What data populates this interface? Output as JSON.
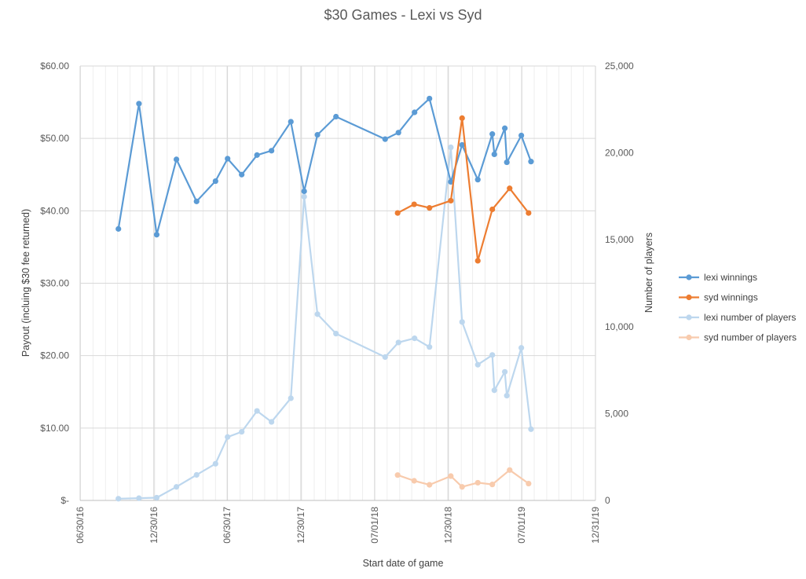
{
  "chart_data": {
    "type": "line",
    "title": "$30 Games - Lexi vs Syd",
    "xlabel": "Start date of game",
    "ylabel": "Payout (incluing $30 fee returned)",
    "y2label": "Number of players",
    "x_ticks": [
      "06/30/16",
      "12/30/16",
      "06/30/17",
      "12/30/17",
      "07/01/18",
      "12/30/18",
      "07/01/19",
      "12/31/19"
    ],
    "y_ticks": [
      "$-",
      "$10.00",
      "$20.00",
      "$30.00",
      "$40.00",
      "$50.00",
      "$60.00"
    ],
    "y2_ticks": [
      "0",
      "5,000",
      "10,000",
      "15,000",
      "20,000",
      "25,000"
    ],
    "xlim": [
      "2016-06-30",
      "2019-12-31"
    ],
    "ylim": [
      0,
      60
    ],
    "y2lim": [
      0,
      25000
    ],
    "grid": true,
    "legend_position": "right",
    "series": [
      {
        "name": "lexi winnings",
        "axis": "left",
        "color": "#5B9BD5",
        "points": [
          {
            "date": "2016-10-03",
            "value": 37.5
          },
          {
            "date": "2016-11-23",
            "value": 54.8
          },
          {
            "date": "2017-01-06",
            "value": 36.7
          },
          {
            "date": "2017-02-24",
            "value": 47.1
          },
          {
            "date": "2017-04-15",
            "value": 41.3
          },
          {
            "date": "2017-06-01",
            "value": 44.1
          },
          {
            "date": "2017-07-01",
            "value": 47.2
          },
          {
            "date": "2017-08-05",
            "value": 45.0
          },
          {
            "date": "2017-09-12",
            "value": 47.7
          },
          {
            "date": "2017-10-18",
            "value": 48.3
          },
          {
            "date": "2017-12-05",
            "value": 52.3
          },
          {
            "date": "2018-01-07",
            "value": 42.7
          },
          {
            "date": "2018-02-09",
            "value": 50.5
          },
          {
            "date": "2018-03-27",
            "value": 53.0
          },
          {
            "date": "2018-07-27",
            "value": 49.9
          },
          {
            "date": "2018-08-29",
            "value": 50.8
          },
          {
            "date": "2018-10-08",
            "value": 53.6
          },
          {
            "date": "2018-11-14",
            "value": 55.5
          },
          {
            "date": "2019-01-06",
            "value": 44.0
          },
          {
            "date": "2019-02-03",
            "value": 49.1
          },
          {
            "date": "2019-03-14",
            "value": 44.3
          },
          {
            "date": "2019-04-19",
            "value": 50.6
          },
          {
            "date": "2019-04-24",
            "value": 47.8
          },
          {
            "date": "2019-05-20",
            "value": 51.4
          },
          {
            "date": "2019-05-25",
            "value": 46.7
          },
          {
            "date": "2019-06-30",
            "value": 50.4
          },
          {
            "date": "2019-07-24",
            "value": 46.8
          }
        ]
      },
      {
        "name": "syd winnings",
        "axis": "left",
        "color": "#ED7D31",
        "points": [
          {
            "date": "2018-08-27",
            "value": 39.7
          },
          {
            "date": "2018-10-07",
            "value": 40.9
          },
          {
            "date": "2018-11-14",
            "value": 40.4
          },
          {
            "date": "2019-01-06",
            "value": 41.4
          },
          {
            "date": "2019-02-03",
            "value": 52.8
          },
          {
            "date": "2019-03-14",
            "value": 33.1
          },
          {
            "date": "2019-04-19",
            "value": 40.2
          },
          {
            "date": "2019-06-01",
            "value": 43.1
          },
          {
            "date": "2019-07-18",
            "value": 39.7
          }
        ]
      },
      {
        "name": "lexi number of players",
        "axis": "right",
        "color": "#BDD7EE",
        "points": [
          {
            "date": "2016-10-03",
            "value": 100
          },
          {
            "date": "2016-11-23",
            "value": 130
          },
          {
            "date": "2017-01-06",
            "value": 160
          },
          {
            "date": "2017-02-24",
            "value": 780
          },
          {
            "date": "2017-04-15",
            "value": 1470
          },
          {
            "date": "2017-06-01",
            "value": 2110
          },
          {
            "date": "2017-07-01",
            "value": 3650
          },
          {
            "date": "2017-08-05",
            "value": 3950
          },
          {
            "date": "2017-09-12",
            "value": 5150
          },
          {
            "date": "2017-10-18",
            "value": 4520
          },
          {
            "date": "2017-12-05",
            "value": 5880
          },
          {
            "date": "2018-01-07",
            "value": 17480
          },
          {
            "date": "2018-02-09",
            "value": 10720
          },
          {
            "date": "2018-03-27",
            "value": 9600
          },
          {
            "date": "2018-07-27",
            "value": 8250
          },
          {
            "date": "2018-08-29",
            "value": 9090
          },
          {
            "date": "2018-10-08",
            "value": 9330
          },
          {
            "date": "2018-11-14",
            "value": 8830
          },
          {
            "date": "2019-01-06",
            "value": 20320
          },
          {
            "date": "2019-02-03",
            "value": 10270
          },
          {
            "date": "2019-03-14",
            "value": 7810
          },
          {
            "date": "2019-04-19",
            "value": 8370
          },
          {
            "date": "2019-04-24",
            "value": 6340
          },
          {
            "date": "2019-05-20",
            "value": 7400
          },
          {
            "date": "2019-05-25",
            "value": 6030
          },
          {
            "date": "2019-06-30",
            "value": 8780
          },
          {
            "date": "2019-07-24",
            "value": 4100
          }
        ]
      },
      {
        "name": "syd number of players",
        "axis": "right",
        "color": "#F8CBAD",
        "points": [
          {
            "date": "2018-08-27",
            "value": 1460
          },
          {
            "date": "2018-10-07",
            "value": 1130
          },
          {
            "date": "2018-11-14",
            "value": 900
          },
          {
            "date": "2019-01-06",
            "value": 1400
          },
          {
            "date": "2019-02-03",
            "value": 780
          },
          {
            "date": "2019-03-14",
            "value": 1020
          },
          {
            "date": "2019-04-19",
            "value": 920
          },
          {
            "date": "2019-06-01",
            "value": 1750
          },
          {
            "date": "2019-07-18",
            "value": 970
          }
        ]
      }
    ]
  }
}
